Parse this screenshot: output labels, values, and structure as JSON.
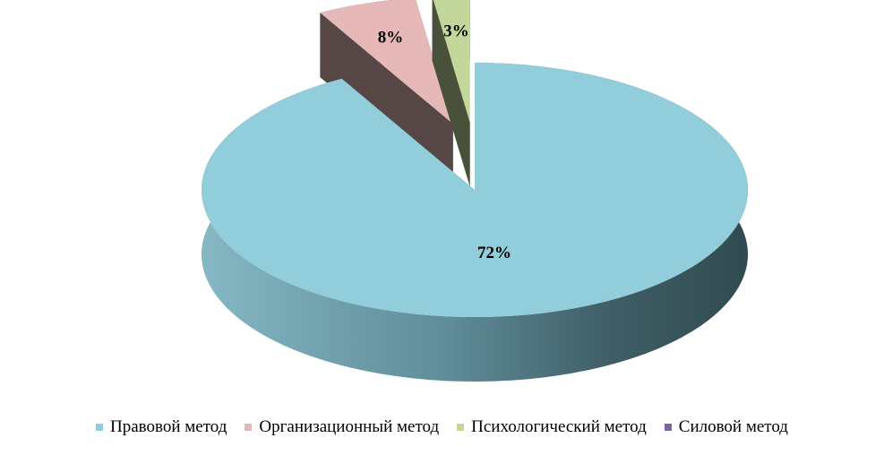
{
  "chart_data": {
    "type": "pie",
    "style": "3d-exploded",
    "categories": [
      "Правовой метод",
      "Организационный метод",
      "Психологический метод",
      "Силовой метод"
    ],
    "values": [
      72,
      8,
      3,
      0
    ],
    "data_labels": [
      "72%",
      "8%",
      "3%",
      ""
    ],
    "colors": [
      "#92cddc",
      "#e6b9b8",
      "#c3d69b",
      "#8064a2"
    ],
    "legend_position": "bottom"
  }
}
